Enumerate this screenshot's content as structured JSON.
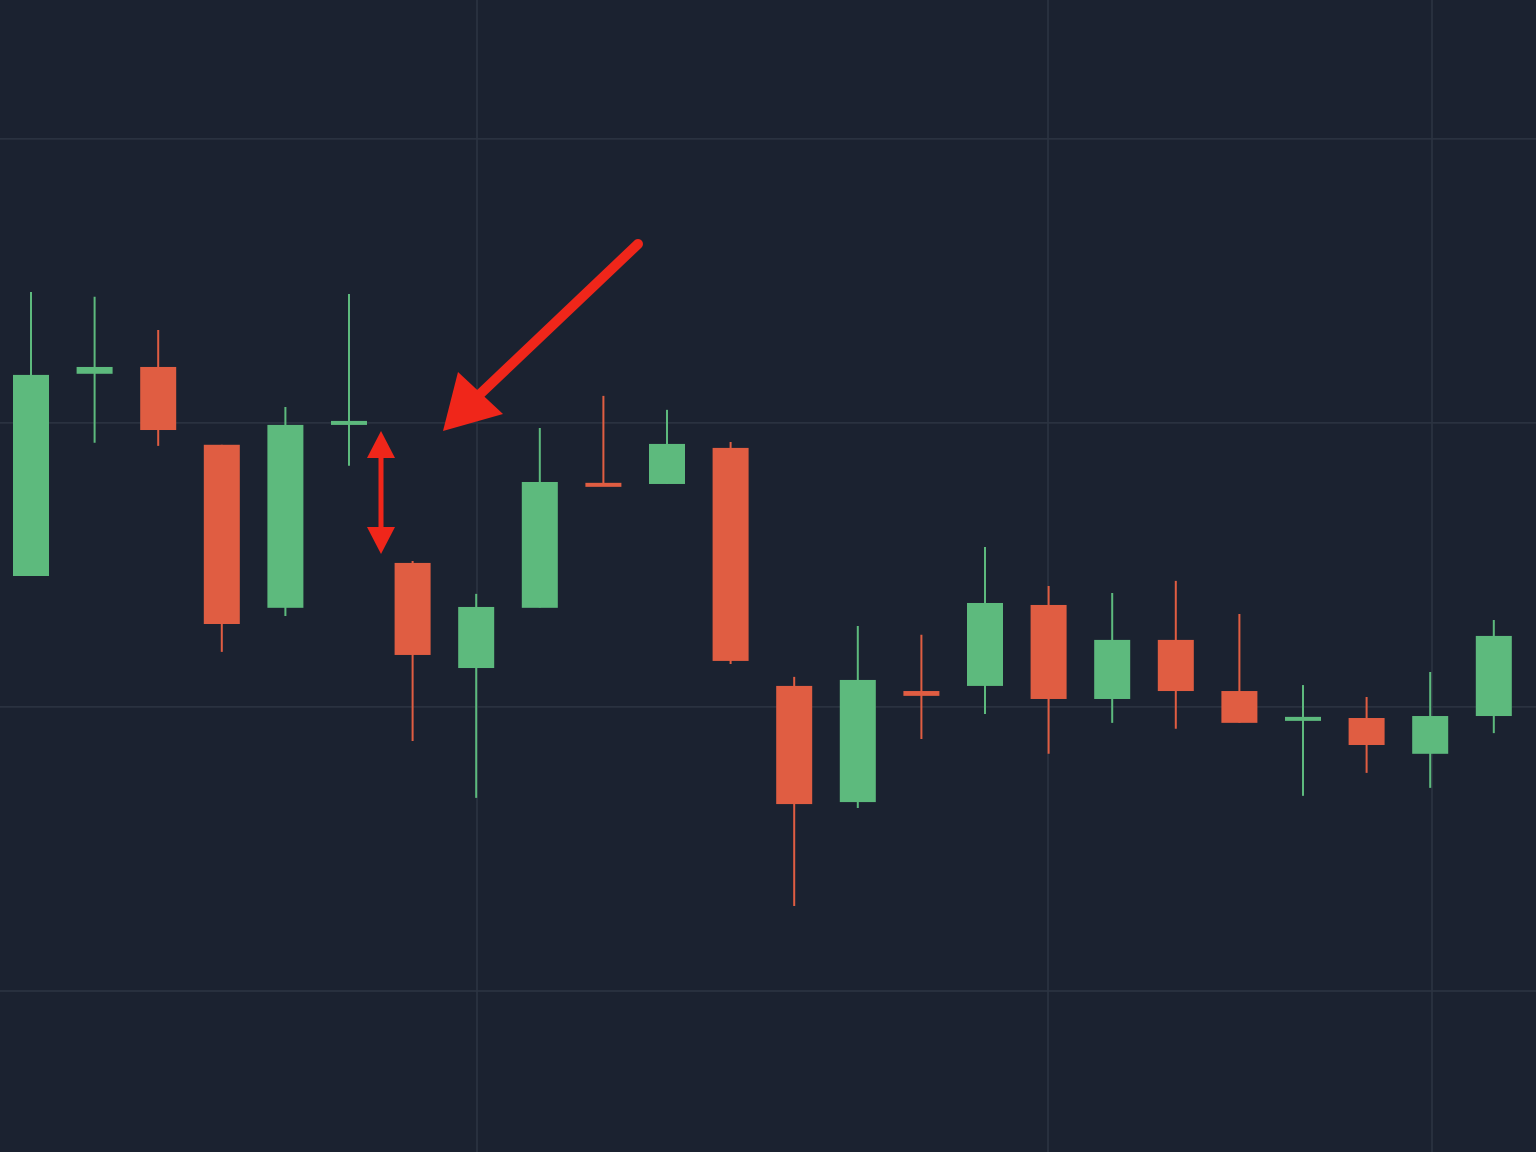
{
  "chart_data": {
    "type": "candlestick",
    "categories": [
      null,
      null,
      null,
      null,
      null,
      null,
      null,
      null,
      null,
      null,
      null,
      null,
      null,
      null,
      null,
      null,
      null,
      null,
      null,
      null,
      null,
      null,
      null,
      null
    ],
    "open": [
      246.1,
      317.3,
      319.7,
      292.3,
      234.9,
      299.6,
      250.7,
      213.7,
      234.9,
      278.9,
      278.5,
      291.2,
      207.4,
      166.5,
      205.6,
      207.4,
      235.9,
      202.8,
      223.6,
      205.6,
      195.1,
      196.1,
      183.5,
      196.8
    ],
    "high": [
      346.1,
      344.4,
      332.7,
      292.3,
      305.6,
      345.4,
      251.4,
      239.8,
      298.2,
      309.5,
      304.6,
      293.3,
      210.6,
      228.5,
      225.4,
      256.3,
      242.6,
      240.1,
      244.4,
      232.7,
      207.7,
      203.5,
      212.3,
      230.6
    ],
    "low": [
      246.1,
      293.0,
      291.9,
      219.4,
      232.0,
      284.9,
      188.0,
      168.0,
      234.9,
      277.8,
      278.5,
      215.1,
      129.9,
      164.4,
      188.7,
      197.5,
      183.5,
      194.4,
      192.3,
      194.4,
      168.7,
      176.8,
      171.5,
      190.8
    ],
    "close": [
      316.9,
      319.7,
      297.5,
      229.2,
      299.3,
      300.7,
      218.3,
      235.2,
      279.2,
      277.8,
      292.6,
      216.2,
      165.8,
      209.5,
      203.9,
      236.6,
      202.8,
      223.6,
      205.6,
      194.4,
      196.5,
      186.6,
      196.8,
      225.0
    ],
    "up_color": "#5dba7d",
    "down_color": "#e05d42",
    "ylim": [
      43.3,
      448.9
    ],
    "yticks": [
      100,
      200,
      300,
      400
    ],
    "grid": true
  }
}
